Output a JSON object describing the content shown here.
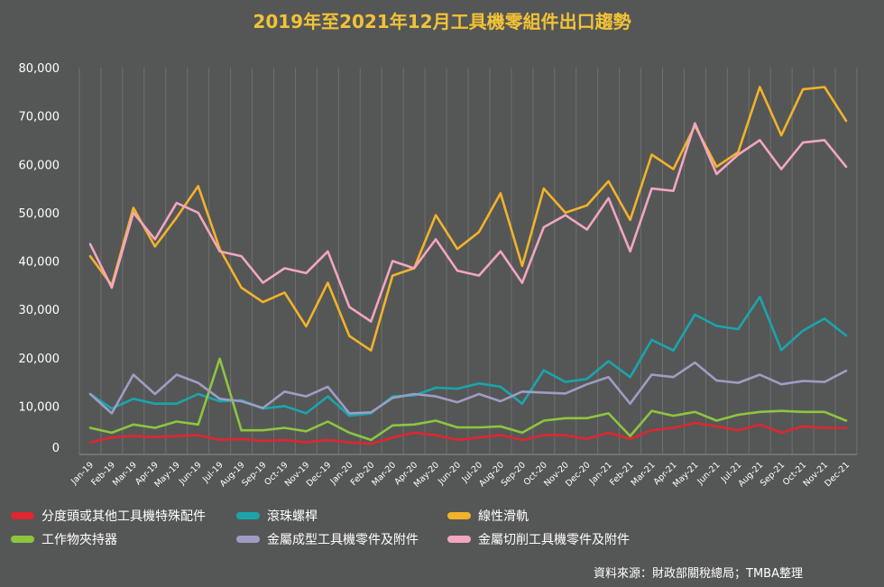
{
  "chart_data": {
    "type": "line",
    "title": "2019年至2021年12月工具機零組件出口趨勢",
    "source": "資料來源：財政部關稅總局；TMBA整理",
    "ylim": [
      0,
      80000
    ],
    "yticks": [
      "0",
      "10,000",
      "20,000",
      "30,000",
      "40,000",
      "50,000",
      "60,000",
      "70,000",
      "80,000"
    ],
    "grid": "vertical",
    "legend_position": "bottom",
    "x": [
      "Jan-19",
      "Feb-19",
      "Mar-19",
      "Apr-19",
      "May-19",
      "Jun-19",
      "Jul-19",
      "Aug-19",
      "Sep-19",
      "Oct-19",
      "Nov-19",
      "Dec-19",
      "Jan-20",
      "Feb-20",
      "Mar-20",
      "Apr-20",
      "May-20",
      "Jun-20",
      "Jul-20",
      "Aug-20",
      "Sep-20",
      "Oct-20",
      "Nov-20",
      "Dec-20",
      "Jan-21",
      "Feb-21",
      "Mar-21",
      "Apr-21",
      "May-21",
      "Jun-21",
      "Jul-21",
      "Aug-21",
      "Sep-21",
      "Oct-21",
      "Nov-21",
      "Dec-21"
    ],
    "series": [
      {
        "name": "分度頭或其他工具機特殊配件",
        "color": "#e0262f",
        "values": [
          2500,
          3500,
          3800,
          3600,
          3800,
          4000,
          3000,
          3200,
          2800,
          3000,
          2500,
          3000,
          2500,
          2200,
          3500,
          4500,
          4000,
          3000,
          3500,
          4000,
          3000,
          4000,
          4000,
          3200,
          4500,
          3200,
          5000,
          5500,
          6500,
          5800,
          5000,
          6200,
          4500,
          5800,
          5500,
          5500
        ]
      },
      {
        "name": "滾珠螺桿",
        "color": "#1aa5ad",
        "values": [
          12500,
          9500,
          11500,
          10500,
          10500,
          12500,
          11000,
          11200,
          9500,
          10000,
          8500,
          12000,
          8000,
          8500,
          12000,
          12200,
          13800,
          13600,
          14700,
          14000,
          10500,
          17400,
          15000,
          15600,
          19300,
          16000,
          23700,
          21500,
          28900,
          26600,
          25900,
          32600,
          21600,
          25600,
          28100,
          24600
        ]
      },
      {
        "name": "線性滑軌",
        "color": "#f2b32a",
        "values": [
          41000,
          35000,
          51000,
          43000,
          49000,
          55500,
          42500,
          34500,
          31500,
          33500,
          26500,
          35500,
          24500,
          21500,
          37000,
          38500,
          49500,
          42500,
          46000,
          54000,
          39000,
          55000,
          50000,
          51500,
          56500,
          48500,
          62000,
          59000,
          68000,
          59500,
          62500,
          76000,
          66000,
          75500,
          76000,
          69000
        ]
      },
      {
        "name": "工作物夾持器",
        "color": "#8cc63f",
        "values": [
          5500,
          4500,
          6200,
          5500,
          6800,
          6200,
          19800,
          5000,
          5000,
          5500,
          4800,
          6800,
          4500,
          3000,
          6000,
          6200,
          7000,
          5600,
          5600,
          5800,
          4500,
          7000,
          7500,
          7500,
          8500,
          3800,
          9000,
          8000,
          8800,
          7000,
          8200,
          8800,
          9000,
          8800,
          8800,
          7000
        ]
      },
      {
        "name": "金屬成型工具機零件及附件",
        "color": "#9d9dc4",
        "values": [
          12500,
          8500,
          16500,
          12500,
          16500,
          14800,
          11500,
          11000,
          9600,
          13000,
          12000,
          14000,
          8500,
          8700,
          11700,
          12500,
          12000,
          10800,
          12500,
          11000,
          13000,
          12800,
          12600,
          14500,
          16000,
          10500,
          16500,
          16000,
          19000,
          15300,
          14800,
          16500,
          14500,
          15200,
          15000,
          17300
        ]
      },
      {
        "name": "金屬切削工具機零件及附件",
        "color": "#f2a6c0",
        "values": [
          43500,
          34500,
          50000,
          44500,
          52000,
          50000,
          42000,
          41000,
          35500,
          38500,
          37500,
          42000,
          30500,
          27500,
          40000,
          38500,
          44500,
          38000,
          37000,
          42000,
          35500,
          47000,
          49500,
          46500,
          53000,
          42000,
          55000,
          54500,
          68500,
          58000,
          62000,
          65000,
          59000,
          64500,
          65000,
          59500
        ]
      }
    ]
  }
}
